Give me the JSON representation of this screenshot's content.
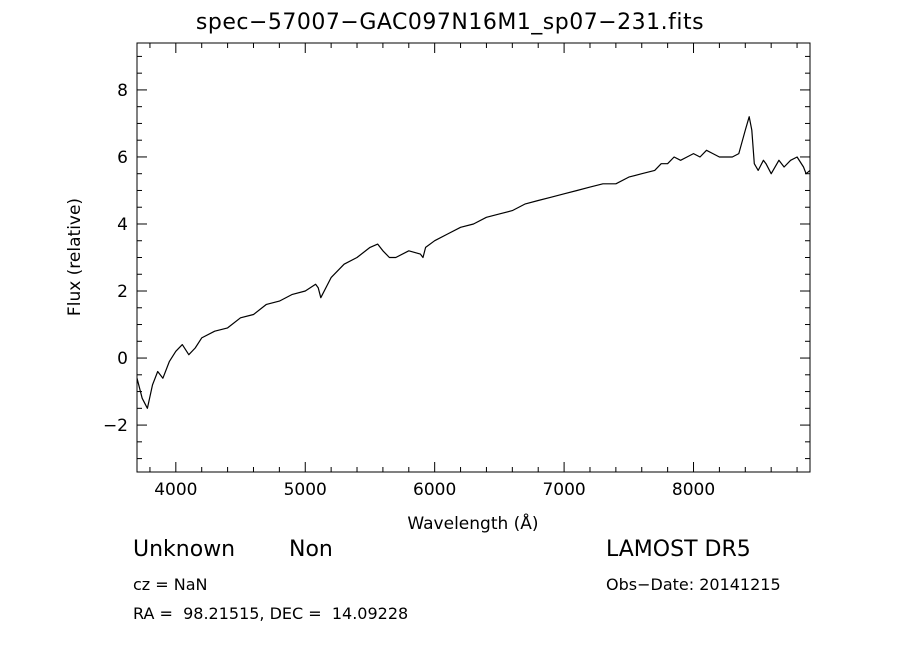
{
  "title": "spec−57007−GAC097N16M1_sp07−231.fits",
  "info": {
    "object_name": "Unknown",
    "object_class": "Non",
    "survey": "LAMOST DR5",
    "cz": "cz = NaN",
    "obs_date": "Obs−Date: 20141215",
    "radec": "RA =  98.21515, DEC =  14.09228"
  },
  "chart_data": {
    "type": "line",
    "title": "spec−57007−GAC097N16M1_sp07−231.fits",
    "xlabel": "Wavelength (Å)",
    "ylabel": "Flux (relative)",
    "xlim": [
      3700,
      8900
    ],
    "ylim": [
      -3.4,
      9.4
    ],
    "xticks": [
      4000,
      5000,
      6000,
      7000,
      8000
    ],
    "yticks": [
      -2,
      0,
      2,
      4,
      6,
      8
    ],
    "x_minor_step": 200,
    "y_minor_step": 0.5,
    "grid": false,
    "line_color": "#000000",
    "series": [
      {
        "x": [
          3700,
          3740,
          3780,
          3820,
          3860,
          3900,
          3950,
          4000,
          4050,
          4100,
          4150,
          4200,
          4300,
          4400,
          4500,
          4600,
          4700,
          4800,
          4900,
          5000,
          5080,
          5100,
          5120,
          5200,
          5300,
          5400,
          5500,
          5560,
          5600,
          5650,
          5700,
          5800,
          5890,
          5910,
          5930,
          6000,
          6100,
          6200,
          6300,
          6400,
          6500,
          6600,
          6700,
          6800,
          6900,
          7000,
          7100,
          7200,
          7300,
          7400,
          7500,
          7600,
          7700,
          7750,
          7800,
          7850,
          7900,
          7950,
          8000,
          8050,
          8100,
          8150,
          8200,
          8300,
          8350,
          8400,
          8430,
          8450,
          8470,
          8500,
          8540,
          8560,
          8600,
          8660,
          8700,
          8750,
          8800,
          8850,
          8870,
          8900
        ],
        "y": [
          -0.6,
          -1.2,
          -1.5,
          -0.8,
          -0.4,
          -0.6,
          -0.1,
          0.2,
          0.4,
          0.1,
          0.3,
          0.6,
          0.8,
          0.9,
          1.2,
          1.3,
          1.6,
          1.7,
          1.9,
          2.0,
          2.2,
          2.1,
          1.8,
          2.4,
          2.8,
          3.0,
          3.3,
          3.4,
          3.2,
          3.0,
          3.0,
          3.2,
          3.1,
          3.0,
          3.3,
          3.5,
          3.7,
          3.9,
          4.0,
          4.2,
          4.3,
          4.4,
          4.6,
          4.7,
          4.8,
          4.9,
          5.0,
          5.1,
          5.2,
          5.2,
          5.4,
          5.5,
          5.6,
          5.8,
          5.8,
          6.0,
          5.9,
          6.0,
          6.1,
          6.0,
          6.2,
          6.1,
          6.0,
          6.0,
          6.1,
          6.8,
          7.2,
          6.8,
          5.8,
          5.6,
          5.9,
          5.8,
          5.5,
          5.9,
          5.7,
          5.9,
          6.0,
          5.7,
          5.5,
          5.6
        ]
      }
    ]
  }
}
